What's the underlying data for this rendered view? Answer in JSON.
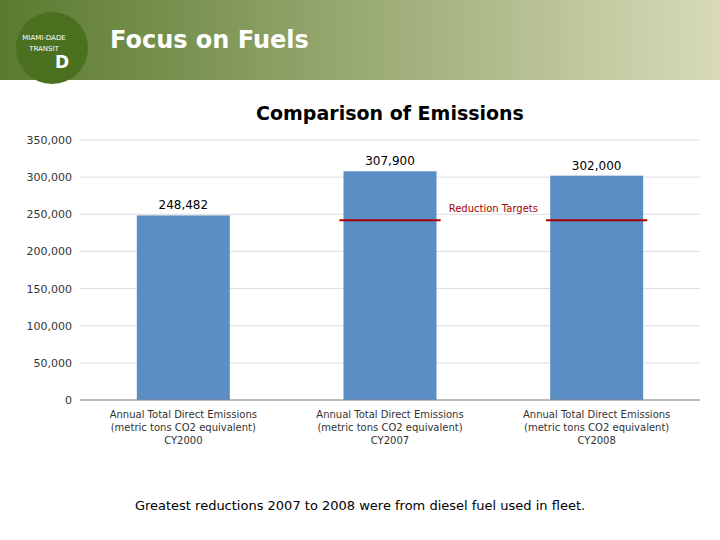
{
  "chart_data": {
    "type": "bar",
    "title": "Comparison of Emissions",
    "header": "Focus on Fuels",
    "logo": [
      "MIAMI-DADE",
      "TRANSIT",
      "D"
    ],
    "categories": [
      "Annual Total Direct Emissions\n(metric tons CO2 equivalent)\nCY2000",
      "Annual Total Direct Emissions\n(metric tons CO2 equivalent)\nCY2007",
      "Annual Total Direct Emissions\n(metric tons CO2 equivalent)\nCY2008"
    ],
    "values": [
      248482,
      307900,
      302000
    ],
    "value_labels": [
      "248,482",
      "307,900",
      "302,000"
    ],
    "data_labels": true,
    "color": "#5b8ec4",
    "target_lines": {
      "label": "Reduction Targets",
      "values": [
        null,
        242000,
        242000
      ],
      "color": "#aa0000"
    },
    "ylim": [
      0,
      350000
    ],
    "yticks": [
      0,
      {
        "value": 50000,
        "label": "50,000"
      },
      {
        "value": 100000,
        "label": "100,000"
      },
      {
        "value": 150000,
        "label": "150,000"
      },
      {
        "value": 200000,
        "label": "200,000"
      },
      {
        "value": 250000,
        "label": "250,000"
      },
      {
        "value": 300000,
        "label": "300,000"
      },
      {
        "value": 350000,
        "label": "350,000"
      }
    ],
    "grid": true,
    "footer": "Greatest reductions 2007 to 2008 were from diesel fuel used in fleet."
  }
}
